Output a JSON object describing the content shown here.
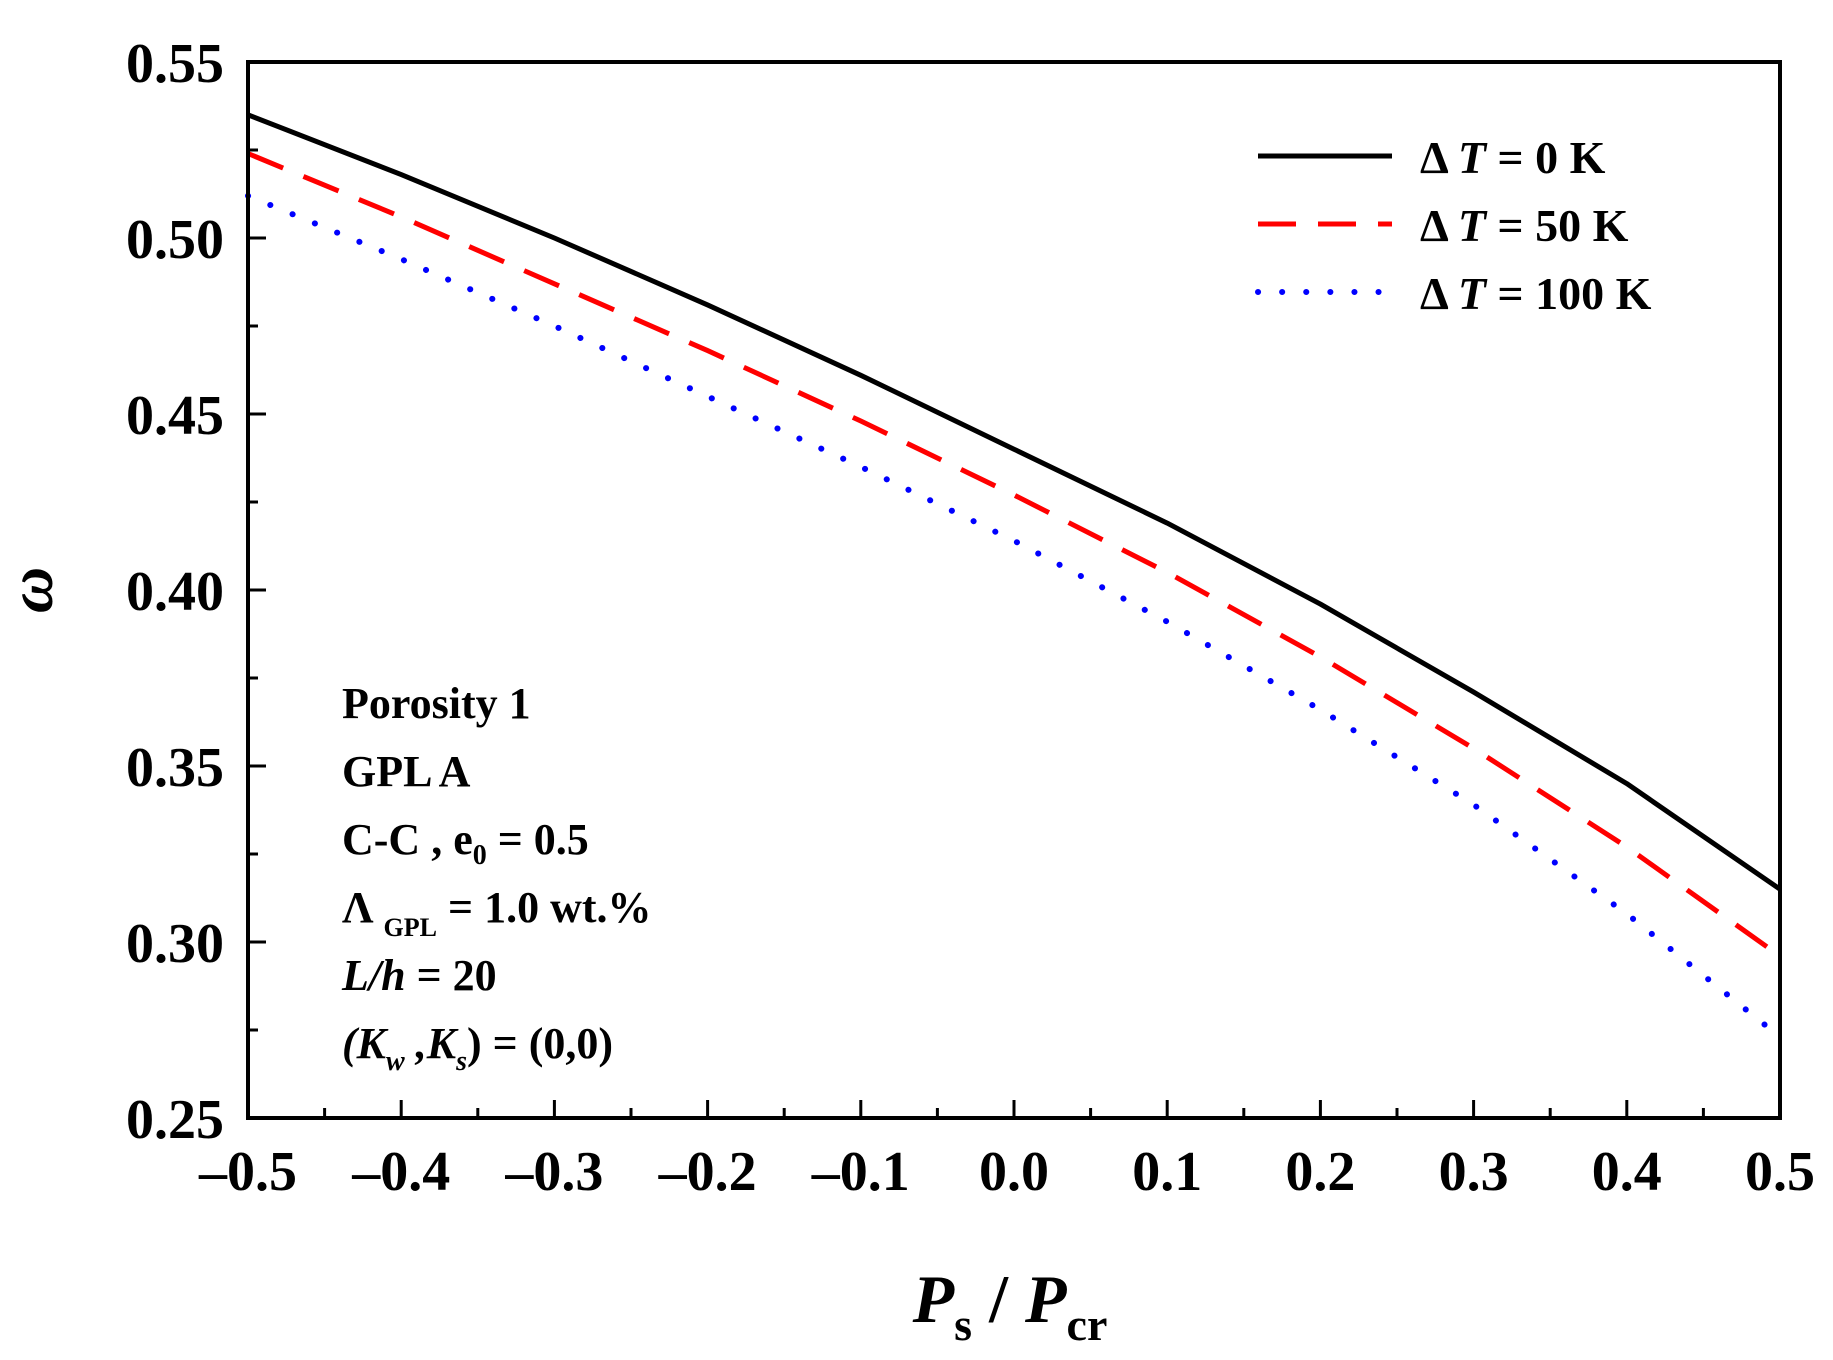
{
  "chart_data": {
    "type": "line",
    "title": "",
    "xlabel": {
      "main": "P",
      "sub1": "s",
      "slash": " / ",
      "main2": "P",
      "sub2": "cr"
    },
    "ylabel": "ω",
    "xlim": [
      -0.5,
      0.5
    ],
    "ylim": [
      0.25,
      0.55
    ],
    "xticks": [
      -0.5,
      -0.4,
      -0.3,
      -0.2,
      -0.1,
      0.0,
      0.1,
      0.2,
      0.3,
      0.4,
      0.5
    ],
    "xtick_labels": [
      "–0.5",
      "–0.4",
      "–0.3",
      "–0.2",
      "–0.1",
      "0.0",
      "0.1",
      "0.2",
      "0.3",
      "0.4",
      "0.5"
    ],
    "yticks": [
      0.25,
      0.3,
      0.35,
      0.4,
      0.45,
      0.5,
      0.55
    ],
    "ytick_labels": [
      "0.25",
      "0.30",
      "0.35",
      "0.40",
      "0.45",
      "0.50",
      "0.55"
    ],
    "grid": false,
    "legend_position": "top-right",
    "x": [
      -0.5,
      -0.4,
      -0.3,
      -0.2,
      -0.1,
      0.0,
      0.1,
      0.2,
      0.3,
      0.4,
      0.5
    ],
    "series": [
      {
        "name": "ΔT = 0 K",
        "delta": "Δ",
        "var": "T",
        "rest": " = 0 K",
        "color": "#000000",
        "style": "solid",
        "values": [
          0.535,
          0.518,
          0.5,
          0.481,
          0.461,
          0.44,
          0.419,
          0.396,
          0.371,
          0.345,
          0.315
        ]
      },
      {
        "name": "ΔT = 50 K",
        "delta": "Δ",
        "var": "T",
        "rest": " = 50 K",
        "color": "#ff0000",
        "style": "dashed",
        "values": [
          0.524,
          0.506,
          0.487,
          0.468,
          0.448,
          0.427,
          0.405,
          0.381,
          0.355,
          0.327,
          0.296
        ]
      },
      {
        "name": "ΔT = 100 K",
        "delta": "Δ",
        "var": "T",
        "rest": " = 100 K",
        "color": "#0000ff",
        "style": "dotted",
        "values": [
          0.512,
          0.494,
          0.475,
          0.455,
          0.435,
          0.414,
          0.391,
          0.366,
          0.339,
          0.308,
          0.273
        ]
      }
    ],
    "annotations": {
      "porosity": "Porosity 1",
      "gpl": "GPL A",
      "cc": {
        "pre": "C-C , e",
        "sub": "0",
        "post": " = 0.5"
      },
      "lambda": {
        "pre": "Λ",
        "sub": "GPL",
        "post": " = 1.0 wt.%"
      },
      "lh": {
        "italic": "L/h",
        "post": " = 20"
      },
      "k": {
        "open": "(",
        "k1": "K",
        "s1": "w",
        "comma": " ,",
        "k2": "K",
        "s2": "s",
        "close": ") = (0,0)"
      }
    }
  }
}
